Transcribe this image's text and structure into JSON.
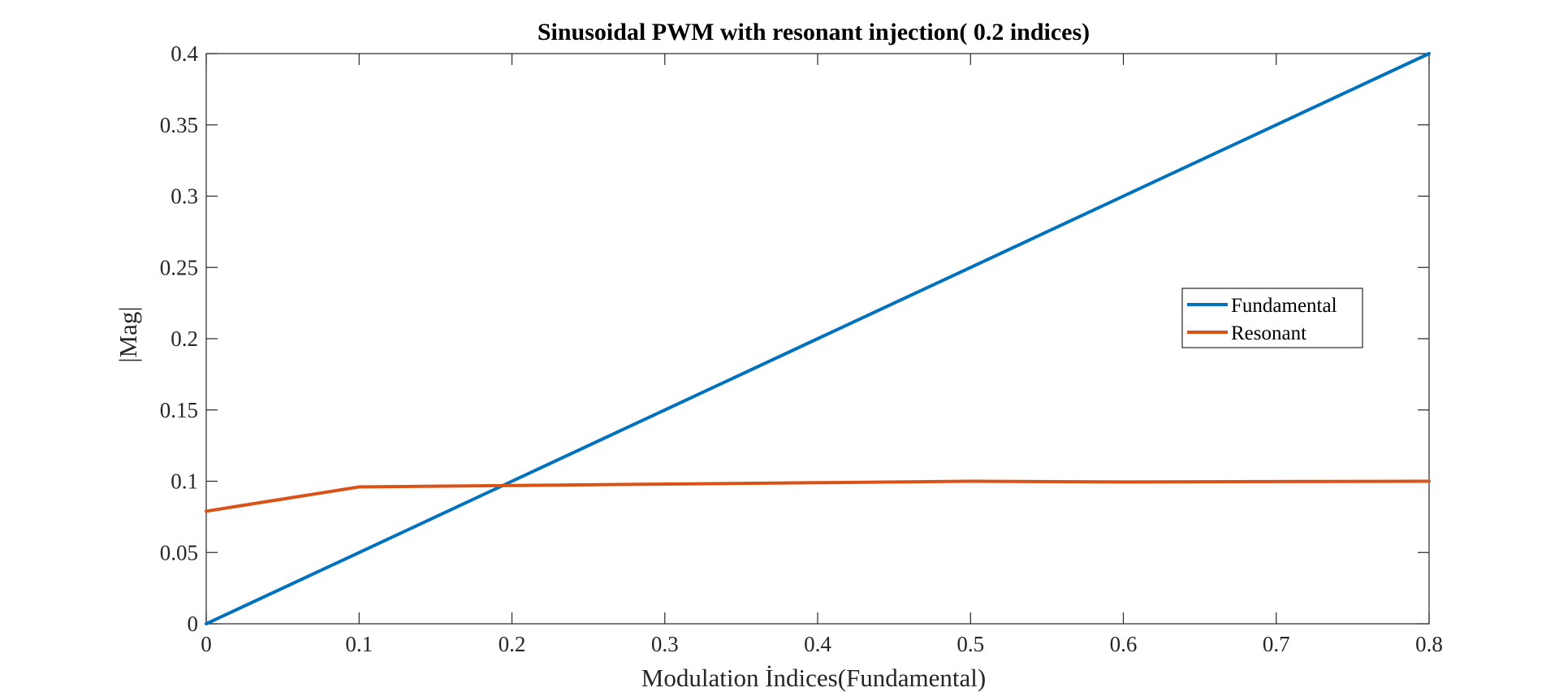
{
  "chart_data": {
    "type": "line",
    "title": "Sinusoidal PWM with resonant injection( 0.2 indices)",
    "xlabel": "Modulation İndices(Fundamental)",
    "ylabel": "|Mag|",
    "xlim": [
      0,
      0.8
    ],
    "ylim": [
      0,
      0.4
    ],
    "x_ticks": [
      "0",
      "0.1",
      "0.2",
      "0.3",
      "0.4",
      "0.5",
      "0.6",
      "0.7",
      "0.8"
    ],
    "y_ticks": [
      "0",
      "0.05",
      "0.1",
      "0.15",
      "0.2",
      "0.25",
      "0.3",
      "0.35",
      "0.4"
    ],
    "grid": false,
    "legend_position": "right",
    "series": [
      {
        "name": "Fundamental",
        "color": "#0072BD",
        "x": [
          0,
          0.1,
          0.2,
          0.3,
          0.4,
          0.5,
          0.6,
          0.7,
          0.8
        ],
        "y": [
          0,
          0.05,
          0.1,
          0.15,
          0.2,
          0.25,
          0.3,
          0.35,
          0.4
        ]
      },
      {
        "name": "Resonant",
        "color": "#D95319",
        "x": [
          0,
          0.1,
          0.2,
          0.3,
          0.4,
          0.5,
          0.6,
          0.7,
          0.8
        ],
        "y": [
          0.079,
          0.096,
          0.097,
          0.098,
          0.099,
          0.1,
          0.0995,
          0.0998,
          0.1
        ]
      }
    ]
  }
}
